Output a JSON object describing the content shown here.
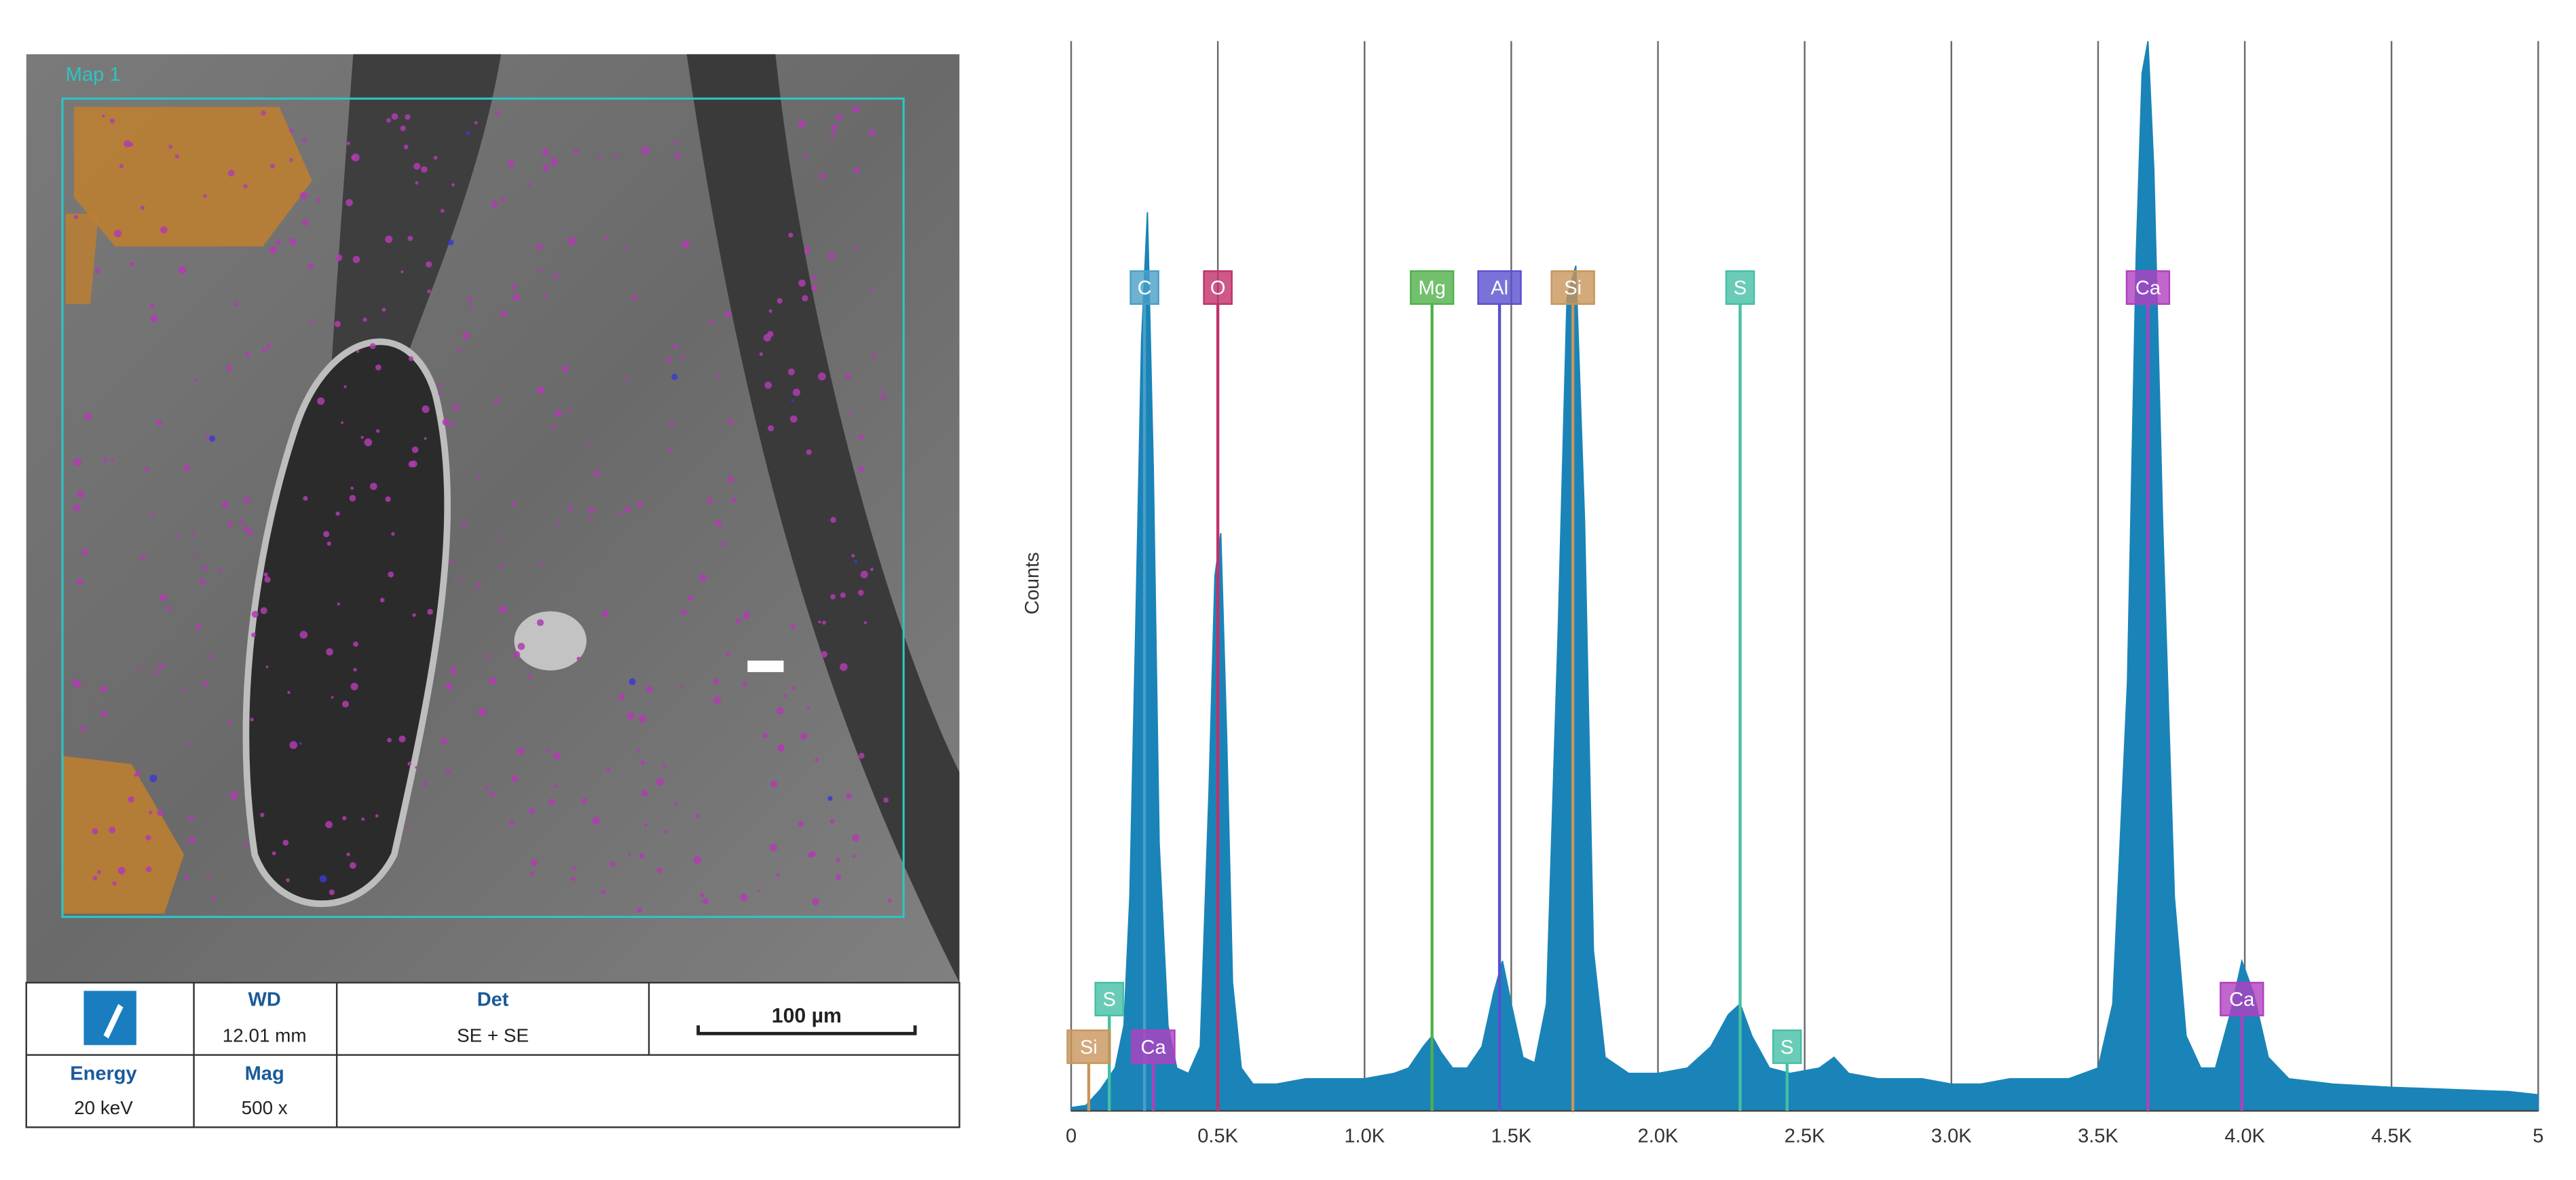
{
  "image_panel": {
    "map_label": "Map 1",
    "info": {
      "wd_label": "WD",
      "wd": "12.01 mm",
      "det_label": "Det",
      "det": "SE + SE",
      "scale": "100 µm",
      "energy_label": "Energy",
      "energy": "20 keV",
      "mag_label": "Mag",
      "mag": "500 x"
    }
  },
  "chart_data": {
    "type": "area",
    "y_label": "Counts",
    "color": "#1a84b8",
    "xlim": [
      0,
      5
    ],
    "ylim": [
      0,
      100
    ],
    "xticks": [
      0,
      {
        "value": 0.5,
        "label": "0.5K"
      },
      {
        "value": 1.0,
        "label": "1.0K"
      },
      {
        "value": 1.5,
        "label": "1.5K"
      },
      {
        "value": 2.0,
        "label": "2.0K"
      },
      {
        "value": 2.5,
        "label": "2.5K"
      },
      {
        "value": 3.0,
        "label": "3.0K"
      },
      {
        "value": 3.5,
        "label": "3.5K"
      },
      {
        "value": 4.0,
        "label": "4.0K"
      },
      {
        "value": 4.5,
        "label": "4.5K"
      },
      5
    ],
    "grid": true,
    "x": [
      0,
      0.05,
      0.1,
      0.15,
      0.18,
      0.2,
      0.22,
      0.24,
      0.26,
      0.28,
      0.3,
      0.33,
      0.36,
      0.4,
      0.44,
      0.47,
      0.49,
      0.51,
      0.53,
      0.55,
      0.58,
      0.62,
      0.7,
      0.8,
      0.9,
      1.0,
      1.1,
      1.15,
      1.2,
      1.23,
      1.26,
      1.3,
      1.35,
      1.4,
      1.44,
      1.47,
      1.5,
      1.54,
      1.58,
      1.62,
      1.66,
      1.69,
      1.72,
      1.75,
      1.78,
      1.82,
      1.9,
      2.0,
      2.1,
      2.18,
      2.24,
      2.28,
      2.32,
      2.38,
      2.45,
      2.55,
      2.6,
      2.65,
      2.75,
      2.9,
      3.0,
      3.1,
      3.2,
      3.3,
      3.4,
      3.5,
      3.55,
      3.6,
      3.63,
      3.65,
      3.67,
      3.69,
      3.72,
      3.76,
      3.8,
      3.85,
      3.9,
      3.95,
      3.99,
      4.03,
      4.08,
      4.15,
      4.3,
      4.5,
      4.7,
      4.9,
      5.0
    ],
    "values": [
      0.3,
      0.5,
      2,
      4,
      8,
      20,
      45,
      72,
      84,
      60,
      25,
      8,
      4,
      3.5,
      6,
      30,
      50,
      54,
      35,
      12,
      4,
      2.5,
      2.5,
      3,
      3,
      3,
      3.5,
      4,
      6,
      7,
      5.5,
      4,
      4,
      6,
      11,
      14,
      10,
      5,
      4.5,
      10,
      45,
      76,
      79,
      55,
      15,
      5,
      3.5,
      3.5,
      4,
      6,
      9,
      10,
      7,
      4,
      3.5,
      4,
      5,
      3.5,
      3,
      3,
      2.5,
      2.5,
      3,
      3,
      3,
      4,
      10,
      40,
      80,
      97,
      100,
      88,
      55,
      20,
      7,
      4,
      4,
      9,
      14,
      11,
      5,
      3,
      2.5,
      2.2,
      2,
      1.8,
      1.5
    ],
    "element_markers": [
      {
        "label": "C",
        "x": 0.25,
        "color": "#4a9fc6",
        "row": 0
      },
      {
        "label": "O",
        "x": 0.5,
        "color": "#c2306a",
        "row": 0
      },
      {
        "label": "Mg",
        "x": 1.23,
        "color": "#4fb04a",
        "row": 0
      },
      {
        "label": "Al",
        "x": 1.46,
        "color": "#5a4fcf",
        "row": 0
      },
      {
        "label": "Si",
        "x": 1.71,
        "color": "#c8955a",
        "row": 0
      },
      {
        "label": "S",
        "x": 2.28,
        "color": "#45bfa5",
        "row": 0
      },
      {
        "label": "Ca",
        "x": 3.67,
        "color": "#b040c0",
        "row": 0
      },
      {
        "label": "S",
        "x": 0.13,
        "color": "#45bfa5",
        "row": 1
      },
      {
        "label": "Si",
        "x": 0.06,
        "color": "#c8955a",
        "row": 2
      },
      {
        "label": "Ca",
        "x": 0.28,
        "color": "#b040c0",
        "row": 2
      },
      {
        "label": "S",
        "x": 2.44,
        "color": "#45bfa5",
        "row": 2
      },
      {
        "label": "Ca",
        "x": 3.99,
        "color": "#b040c0",
        "row": 1
      }
    ]
  }
}
